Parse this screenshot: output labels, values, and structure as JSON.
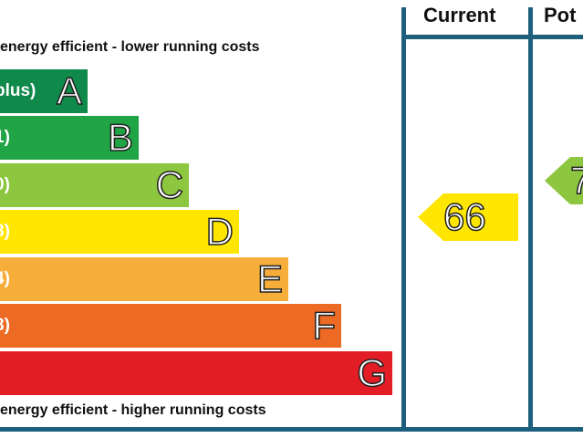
{
  "top_caption": "energy efficient - lower running costs",
  "bottom_caption": "energy efficient - higher running costs",
  "columns": {
    "current": "Current",
    "potential": "Pot"
  },
  "bands": [
    {
      "range": "plus)",
      "letter": "A",
      "color": "#0f8a4a"
    },
    {
      "range": "1)",
      "letter": "B",
      "color": "#20a445"
    },
    {
      "range": "0)",
      "letter": "C",
      "color": "#8dc63f"
    },
    {
      "range": "8)",
      "letter": "D",
      "color": "#ffe600"
    },
    {
      "range": "4)",
      "letter": "E",
      "color": "#f7ad3a"
    },
    {
      "range": "8)",
      "letter": "F",
      "color": "#ed6a24"
    },
    {
      "range": ")",
      "letter": "G",
      "color": "#e31d25"
    }
  ],
  "current_rating": {
    "value": "66",
    "color": "#ffe600"
  },
  "potential_rating": {
    "value": "7",
    "color": "#8dc63f"
  },
  "chart_data": {
    "type": "bar",
    "categories": [
      "A",
      "B",
      "C",
      "D",
      "E",
      "F",
      "G"
    ],
    "current": 66
  }
}
